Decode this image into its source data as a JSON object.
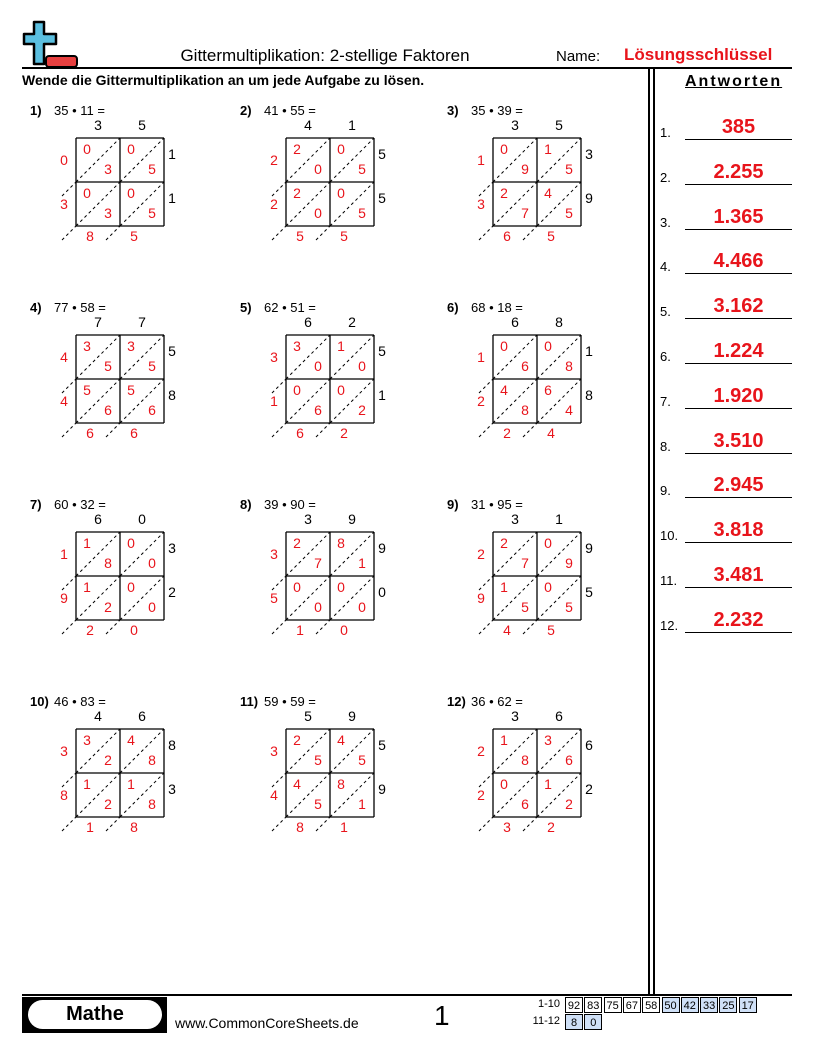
{
  "header": {
    "title": "Gittermultiplikation: 2-stellige Faktoren",
    "name_label": "Name:",
    "name_value": "Lösungsschlüssel",
    "instructions": "Wende die Gittermultiplikation an um jede Aufgabe zu lösen."
  },
  "answers": {
    "heading": "Antworten",
    "items": [
      {
        "num": "1.",
        "value": "385"
      },
      {
        "num": "2.",
        "value": "2.255"
      },
      {
        "num": "3.",
        "value": "1.365"
      },
      {
        "num": "4.",
        "value": "4.466"
      },
      {
        "num": "5.",
        "value": "3.162"
      },
      {
        "num": "6.",
        "value": "1.224"
      },
      {
        "num": "7.",
        "value": "1.920"
      },
      {
        "num": "8.",
        "value": "3.510"
      },
      {
        "num": "9.",
        "value": "2.945"
      },
      {
        "num": "10.",
        "value": "3.818"
      },
      {
        "num": "11.",
        "value": "3.481"
      },
      {
        "num": "12.",
        "value": "2.232"
      }
    ]
  },
  "problems": [
    {
      "label": "1)",
      "expr": "35 • 11 =",
      "top": [
        "3",
        "5"
      ],
      "right": [
        "1",
        "1"
      ],
      "cells": [
        [
          "03",
          "05"
        ],
        [
          "03",
          "05"
        ]
      ],
      "left": [
        "0",
        "3"
      ],
      "bottom": [
        "8",
        "5"
      ]
    },
    {
      "label": "2)",
      "expr": "41 • 55 =",
      "top": [
        "4",
        "1"
      ],
      "right": [
        "5",
        "5"
      ],
      "cells": [
        [
          "20",
          "05"
        ],
        [
          "20",
          "05"
        ]
      ],
      "left": [
        "2",
        "2"
      ],
      "bottom": [
        "5",
        "5"
      ]
    },
    {
      "label": "3)",
      "expr": "35 • 39 =",
      "top": [
        "3",
        "5"
      ],
      "right": [
        "3",
        "9"
      ],
      "cells": [
        [
          "09",
          "15"
        ],
        [
          "27",
          "45"
        ]
      ],
      "left": [
        "1",
        "3"
      ],
      "bottom": [
        "6",
        "5"
      ]
    },
    {
      "label": "4)",
      "expr": "77 • 58 =",
      "top": [
        "7",
        "7"
      ],
      "right": [
        "5",
        "8"
      ],
      "cells": [
        [
          "35",
          "35"
        ],
        [
          "56",
          "56"
        ]
      ],
      "left": [
        "4",
        "4"
      ],
      "bottom": [
        "6",
        "6"
      ]
    },
    {
      "label": "5)",
      "expr": "62 • 51 =",
      "top": [
        "6",
        "2"
      ],
      "right": [
        "5",
        "1"
      ],
      "cells": [
        [
          "30",
          "10"
        ],
        [
          "06",
          "02"
        ]
      ],
      "left": [
        "3",
        "1"
      ],
      "bottom": [
        "6",
        "2"
      ]
    },
    {
      "label": "6)",
      "expr": "68 • 18 =",
      "top": [
        "6",
        "8"
      ],
      "right": [
        "1",
        "8"
      ],
      "cells": [
        [
          "06",
          "08"
        ],
        [
          "48",
          "64"
        ]
      ],
      "left": [
        "1",
        "2"
      ],
      "bottom": [
        "2",
        "4"
      ]
    },
    {
      "label": "7)",
      "expr": "60 • 32 =",
      "top": [
        "6",
        "0"
      ],
      "right": [
        "3",
        "2"
      ],
      "cells": [
        [
          "18",
          "00"
        ],
        [
          "12",
          "00"
        ]
      ],
      "left": [
        "1",
        "9"
      ],
      "bottom": [
        "2",
        "0"
      ]
    },
    {
      "label": "8)",
      "expr": "39 • 90 =",
      "top": [
        "3",
        "9"
      ],
      "right": [
        "9",
        "0"
      ],
      "cells": [
        [
          "27",
          "81"
        ],
        [
          "00",
          "00"
        ]
      ],
      "left": [
        "3",
        "5"
      ],
      "bottom": [
        "1",
        "0"
      ]
    },
    {
      "label": "9)",
      "expr": "31 • 95 =",
      "top": [
        "3",
        "1"
      ],
      "right": [
        "9",
        "5"
      ],
      "cells": [
        [
          "27",
          "09"
        ],
        [
          "15",
          "05"
        ]
      ],
      "left": [
        "2",
        "9"
      ],
      "bottom": [
        "4",
        "5"
      ]
    },
    {
      "label": "10)",
      "expr": "46 • 83 =",
      "top": [
        "4",
        "6"
      ],
      "right": [
        "8",
        "3"
      ],
      "cells": [
        [
          "32",
          "48"
        ],
        [
          "12",
          "18"
        ]
      ],
      "left": [
        "3",
        "8"
      ],
      "bottom": [
        "1",
        "8"
      ]
    },
    {
      "label": "11)",
      "expr": "59 • 59 =",
      "top": [
        "5",
        "9"
      ],
      "right": [
        "5",
        "9"
      ],
      "cells": [
        [
          "25",
          "45"
        ],
        [
          "45",
          "81"
        ]
      ],
      "left": [
        "3",
        "4"
      ],
      "bottom": [
        "8",
        "1"
      ]
    },
    {
      "label": "12)",
      "expr": "36 • 62 =",
      "top": [
        "3",
        "6"
      ],
      "right": [
        "6",
        "2"
      ],
      "cells": [
        [
          "18",
          "36"
        ],
        [
          "06",
          "12"
        ]
      ],
      "left": [
        "2",
        "2"
      ],
      "bottom": [
        "3",
        "2"
      ]
    }
  ],
  "footer": {
    "subject": "Mathe",
    "url": "www.CommonCoreSheets.de",
    "page": "1",
    "score_rows": [
      {
        "label": "1-10",
        "values": [
          "92",
          "83",
          "75",
          "67",
          "58",
          "50",
          "42",
          "33",
          "25",
          "17"
        ]
      },
      {
        "label": "11-12",
        "values": [
          "8",
          "0"
        ]
      }
    ],
    "highlight_color": "#cfe0f7"
  },
  "colors": {
    "answer": "#e8141b",
    "logo_blue": "#5bbfe0",
    "logo_red": "#e84040"
  }
}
